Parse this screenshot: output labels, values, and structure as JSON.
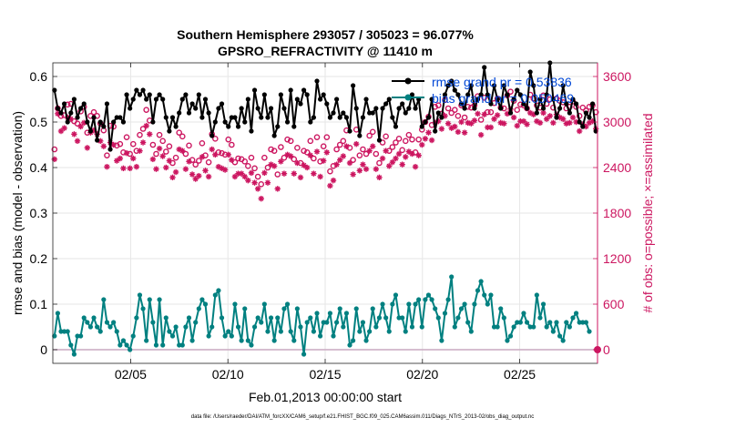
{
  "chart_data": {
    "type": "line",
    "title": "Southern Hemisphere 293057 / 305023 = 96.077%",
    "subtitle": "GPSRO_REFRACTIVITY @ 11410 m",
    "xlabel": "Feb.01,2013 00:00:00 start",
    "ylabel_left": "rmse and bias (model - observation)",
    "ylabel_right": "# of obs: o=possible; ×=assimilated",
    "footer": "data file: /Users/raeder/DAI/ATM_forcXX/CAM6_setup/f.e21.FHIST_BGC.f09_025.CAM6assim.011/Diags_NTrS_2013-02/obs_diag_output.nc",
    "xlim": [
      1,
      29
    ],
    "ylim_left": [
      -0.03,
      0.63
    ],
    "ylim_right": [
      -180,
      3780
    ],
    "x_ticks": [
      5,
      10,
      15,
      20,
      25
    ],
    "x_tick_labels": [
      "02/05",
      "02/10",
      "02/15",
      "02/20",
      "02/25"
    ],
    "y_ticks_left": [
      0,
      0.1,
      0.2,
      0.3,
      0.4,
      0.5,
      0.6
    ],
    "y_tick_labels_left": [
      "0",
      "0.1",
      "0.2",
      "0.3",
      "0.4",
      "0.5",
      "0.6"
    ],
    "y_ticks_right": [
      0,
      600,
      1200,
      1800,
      2400,
      3000,
      3600
    ],
    "y_tick_labels_right": [
      "0",
      "600",
      "1200",
      "1800",
      "2400",
      "3000",
      "3600"
    ],
    "grid": true,
    "legend_position": "top-right",
    "colors": {
      "rmse": "#000000",
      "bias": "#008080",
      "obs": "#cc1660",
      "axis_right": "#cc1660",
      "legend_text": "#0047d6",
      "zero_line": "#c9a9c1"
    },
    "series": [
      {
        "name": "rmse",
        "legend": "rmse grand pr = 0.53836",
        "values": [
          0.57,
          0.53,
          0.52,
          0.54,
          0.5,
          0.52,
          0.55,
          0.51,
          0.53,
          0.54,
          0.5,
          0.48,
          0.51,
          0.46,
          0.5,
          0.49,
          0.54,
          0.44,
          0.5,
          0.51,
          0.51,
          0.5,
          0.56,
          0.53,
          0.55,
          0.57,
          0.56,
          0.57,
          0.55,
          0.56,
          0.5,
          0.55,
          0.56,
          0.55,
          0.51,
          0.48,
          0.51,
          0.49,
          0.52,
          0.55,
          0.56,
          0.52,
          0.54,
          0.53,
          0.56,
          0.51,
          0.55,
          0.52,
          0.47,
          0.5,
          0.53,
          0.54,
          0.5,
          0.49,
          0.51,
          0.51,
          0.49,
          0.53,
          0.5,
          0.55,
          0.48,
          0.57,
          0.53,
          0.51,
          0.56,
          0.51,
          0.53,
          0.47,
          0.49,
          0.56,
          0.53,
          0.5,
          0.57,
          0.49,
          0.55,
          0.54,
          0.57,
          0.56,
          0.5,
          0.51,
          0.59,
          0.55,
          0.56,
          0.54,
          0.51,
          0.52,
          0.55,
          0.51,
          0.52,
          0.51,
          0.48,
          0.58,
          0.53,
          0.47,
          0.51,
          0.55,
          0.52,
          0.52,
          0.53,
          0.46,
          0.53,
          0.54,
          0.55,
          0.51,
          0.49,
          0.53,
          0.54,
          0.52,
          0.53,
          0.56,
          0.53,
          0.55,
          0.49,
          0.5,
          0.51,
          0.55,
          0.48,
          0.52,
          0.51,
          0.56,
          0.58,
          0.59,
          0.57,
          0.56,
          0.54,
          0.53,
          0.56,
          0.58,
          0.53,
          0.55,
          0.56,
          0.62,
          0.56,
          0.54,
          0.58,
          0.55,
          0.53,
          0.58,
          0.56,
          0.52,
          0.55,
          0.57,
          0.56,
          0.54,
          0.53,
          0.61,
          0.58,
          0.52,
          0.55,
          0.53,
          0.56,
          0.63,
          0.55,
          0.51,
          0.53,
          0.58,
          0.54,
          0.52,
          0.55,
          0.54,
          0.5,
          0.49,
          0.52,
          0.51,
          0.54,
          0.48
        ]
      },
      {
        "name": "bias",
        "legend": "bias grand pr = 0.050469",
        "values": [
          0.03,
          0.08,
          0.04,
          0.04,
          0.04,
          0.01,
          -0.01,
          0.03,
          0.03,
          0.07,
          0.06,
          0.05,
          0.07,
          0.05,
          0.04,
          0.11,
          0.06,
          0.05,
          0.06,
          0.04,
          0.01,
          0.02,
          0.01,
          0.0,
          0.03,
          0.07,
          0.12,
          0.09,
          0.02,
          0.11,
          0.06,
          0.01,
          0.11,
          0.01,
          0.07,
          0.04,
          0.03,
          0.05,
          0.01,
          0.01,
          0.05,
          0.07,
          0.02,
          0.06,
          0.09,
          0.11,
          0.1,
          0.03,
          0.05,
          0.12,
          0.13,
          0.07,
          0.03,
          0.04,
          0.03,
          0.1,
          0.05,
          0.02,
          0.09,
          0.02,
          0.01,
          0.05,
          0.07,
          0.06,
          0.1,
          0.04,
          0.07,
          0.02,
          0.07,
          0.04,
          0.09,
          0.1,
          0.04,
          0.02,
          0.09,
          0.05,
          -0.01,
          0.06,
          0.07,
          0.04,
          0.08,
          0.03,
          0.06,
          0.06,
          0.08,
          0.03,
          0.06,
          0.09,
          0.05,
          0.08,
          0.01,
          0.02,
          0.09,
          0.04,
          0.06,
          0.02,
          0.04,
          0.09,
          0.05,
          0.07,
          0.1,
          0.07,
          0.04,
          0.1,
          0.12,
          0.07,
          0.07,
          0.04,
          0.1,
          0.05,
          0.1,
          0.11,
          0.05,
          0.11,
          0.12,
          0.11,
          0.09,
          0.07,
          0.02,
          0.08,
          0.11,
          0.16,
          0.05,
          0.07,
          0.09,
          0.1,
          0.06,
          0.04,
          0.1,
          0.13,
          0.15,
          0.12,
          0.1,
          0.12,
          0.05,
          0.05,
          0.09,
          0.07,
          0.02,
          0.03,
          0.05,
          0.06,
          0.06,
          0.08,
          0.06,
          0.05,
          0.05,
          0.12,
          0.07,
          0.1,
          0.05,
          0.06,
          0.04,
          0.06,
          0.03,
          0.02,
          0.06,
          0.05,
          0.07,
          0.08,
          0.06,
          0.06,
          0.06,
          0.04
        ]
      },
      {
        "name": "obs_possible",
        "marker": "o",
        "values": [
          2640,
          3180,
          3080,
          3090,
          3230,
          3240,
          3010,
          2980,
          3140,
          3200,
          2860,
          3080,
          3130,
          3080,
          2980,
          2890,
          2560,
          2950,
          2940,
          2690,
          2710,
          2600,
          2800,
          2580,
          2710,
          2620,
          2830,
          2910,
          3160,
          3020,
          2700,
          2580,
          2830,
          2750,
          2610,
          2680,
          2460,
          2530,
          2860,
          2810,
          2580,
          2690,
          2500,
          2440,
          2490,
          2720,
          2560,
          2470,
          2840,
          2780,
          2600,
          2590,
          2570,
          2770,
          2700,
          2470,
          2520,
          2510,
          2480,
          2420,
          2530,
          2390,
          2280,
          2180,
          2530,
          2400,
          2640,
          2620,
          2310,
          2670,
          2530,
          2770,
          2750,
          2510,
          2660,
          2460,
          2620,
          2600,
          2750,
          2520,
          2800,
          2480,
          2680,
          2800,
          2350,
          2420,
          2640,
          2700,
          2750,
          2890,
          2660,
          2500,
          2900,
          2560,
          2640,
          2580,
          2820,
          2870,
          2580,
          2460,
          2730,
          2810,
          2620,
          2670,
          2730,
          2780,
          2630,
          2750,
          2830,
          2770,
          2600,
          2770,
          2900,
          3000,
          3070,
          2960,
          3200,
          3220,
          3110,
          3290,
          3180,
          3120,
          3160,
          3080,
          3220,
          3060,
          3200,
          3190,
          3220,
          3340,
          3030,
          3320,
          3130,
          3130,
          3250,
          3310,
          3190,
          3180,
          3350,
          3400,
          3280,
          3160,
          3230,
          3220,
          3180,
          3360,
          3310,
          3220,
          3190,
          3350,
          3240,
          3300,
          3190,
          3310,
          3280,
          3260,
          3180,
          3200,
          3270,
          3200,
          3080,
          3190,
          3150,
          3200,
          3220,
          3130
        ]
      },
      {
        "name": "obs_assimilated",
        "marker": "*",
        "values": [
          2510,
          3110,
          2880,
          2920,
          3060,
          3040,
          2840,
          2750,
          2940,
          2990,
          2660,
          2860,
          2890,
          2840,
          2750,
          2680,
          2410,
          2730,
          2700,
          2490,
          2520,
          2390,
          2590,
          2390,
          2520,
          2410,
          2620,
          2730,
          2950,
          2840,
          2510,
          2380,
          2650,
          2550,
          2400,
          2490,
          2270,
          2340,
          2640,
          2620,
          2380,
          2480,
          2310,
          2250,
          2290,
          2540,
          2360,
          2280,
          2640,
          2570,
          2410,
          2390,
          2370,
          2570,
          2500,
          2280,
          2320,
          2320,
          2280,
          2230,
          2330,
          2200,
          2120,
          1990,
          2330,
          2200,
          2440,
          2420,
          2120,
          2480,
          2320,
          2570,
          2550,
          2320,
          2460,
          2270,
          2430,
          2400,
          2560,
          2320,
          2610,
          2280,
          2490,
          2600,
          2160,
          2230,
          2440,
          2500,
          2550,
          2680,
          2460,
          2310,
          2710,
          2360,
          2440,
          2380,
          2620,
          2680,
          2380,
          2270,
          2520,
          2620,
          2420,
          2470,
          2520,
          2580,
          2440,
          2540,
          2610,
          2580,
          2410,
          2560,
          2700,
          2780,
          2860,
          2760,
          2990,
          3010,
          2910,
          3080,
          2980,
          2920,
          2940,
          2870,
          3000,
          2860,
          2990,
          2980,
          3020,
          3110,
          2830,
          3100,
          2930,
          2930,
          3040,
          3090,
          2990,
          2980,
          3110,
          3170,
          3060,
          2950,
          3010,
          3010,
          2970,
          3120,
          3100,
          3010,
          2990,
          3120,
          3040,
          3080,
          2990,
          3100,
          3060,
          3040,
          2980,
          2990,
          3060,
          3000,
          2880,
          2970,
          2940,
          2990,
          3010,
          2910
        ]
      }
    ]
  }
}
